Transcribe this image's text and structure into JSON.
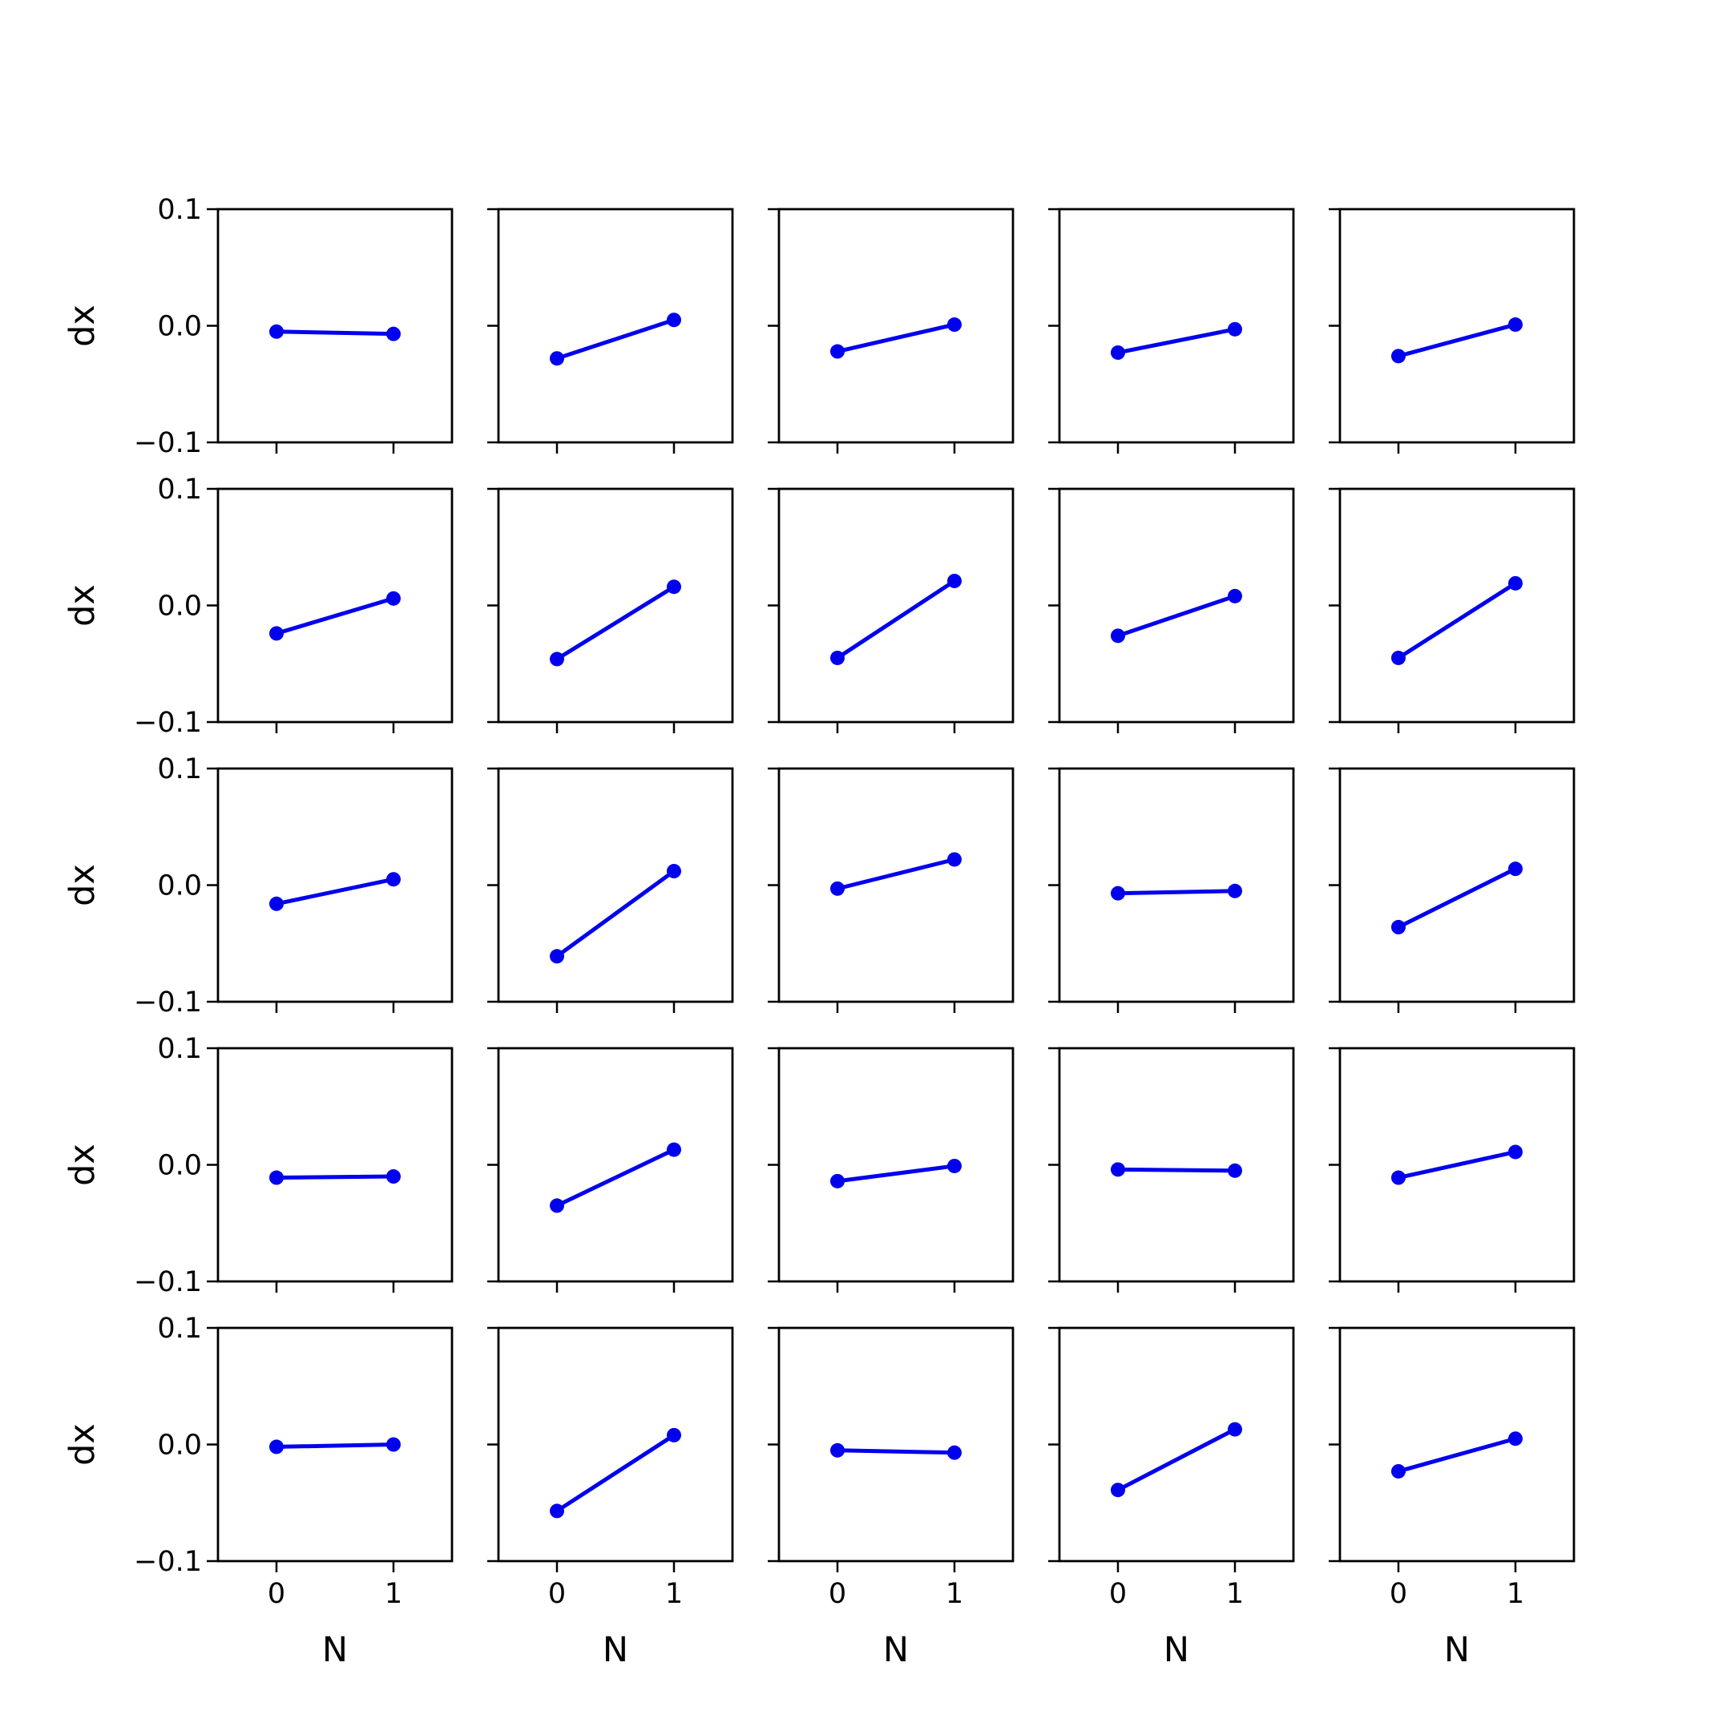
{
  "chart_data": {
    "type": "line",
    "layout": "grid of 5 rows x 5 columns, shared axes",
    "xlabel": "N",
    "ylabel": "dx",
    "x": [
      0,
      1
    ],
    "xticks": [
      0,
      1
    ],
    "xtick_labels": [
      "0",
      "1"
    ],
    "xlim": [
      -0.5,
      1.5
    ],
    "ylim": [
      -0.1,
      0.1
    ],
    "yticks": [
      -0.1,
      0.0,
      0.1
    ],
    "ytick_labels": [
      "−0.1",
      "0.0",
      "0.1"
    ],
    "grid": false,
    "legend": "none",
    "line_color": "#0000ee",
    "marker": "circle",
    "panels": [
      {
        "row": 1,
        "col": 1,
        "values": [
          -0.005,
          -0.007
        ]
      },
      {
        "row": 1,
        "col": 2,
        "values": [
          -0.028,
          0.005
        ]
      },
      {
        "row": 1,
        "col": 3,
        "values": [
          -0.022,
          0.001
        ]
      },
      {
        "row": 1,
        "col": 4,
        "values": [
          -0.023,
          -0.003
        ]
      },
      {
        "row": 1,
        "col": 5,
        "values": [
          -0.026,
          0.001
        ]
      },
      {
        "row": 2,
        "col": 1,
        "values": [
          -0.024,
          0.006
        ]
      },
      {
        "row": 2,
        "col": 2,
        "values": [
          -0.046,
          0.016
        ]
      },
      {
        "row": 2,
        "col": 3,
        "values": [
          -0.045,
          0.021
        ]
      },
      {
        "row": 2,
        "col": 4,
        "values": [
          -0.026,
          0.008
        ]
      },
      {
        "row": 2,
        "col": 5,
        "values": [
          -0.045,
          0.019
        ]
      },
      {
        "row": 3,
        "col": 1,
        "values": [
          -0.016,
          0.005
        ]
      },
      {
        "row": 3,
        "col": 2,
        "values": [
          -0.061,
          0.012
        ]
      },
      {
        "row": 3,
        "col": 3,
        "values": [
          -0.003,
          0.022
        ]
      },
      {
        "row": 3,
        "col": 4,
        "values": [
          -0.007,
          -0.005
        ]
      },
      {
        "row": 3,
        "col": 5,
        "values": [
          -0.036,
          0.014
        ]
      },
      {
        "row": 4,
        "col": 1,
        "values": [
          -0.011,
          -0.01
        ]
      },
      {
        "row": 4,
        "col": 2,
        "values": [
          -0.035,
          0.013
        ]
      },
      {
        "row": 4,
        "col": 3,
        "values": [
          -0.014,
          -0.001
        ]
      },
      {
        "row": 4,
        "col": 4,
        "values": [
          -0.004,
          -0.005
        ]
      },
      {
        "row": 4,
        "col": 5,
        "values": [
          -0.011,
          0.011
        ]
      },
      {
        "row": 5,
        "col": 1,
        "values": [
          -0.002,
          0.0
        ]
      },
      {
        "row": 5,
        "col": 2,
        "values": [
          -0.057,
          0.008
        ]
      },
      {
        "row": 5,
        "col": 3,
        "values": [
          -0.005,
          -0.007
        ]
      },
      {
        "row": 5,
        "col": 4,
        "values": [
          -0.039,
          0.013
        ]
      },
      {
        "row": 5,
        "col": 5,
        "values": [
          -0.023,
          0.005
        ]
      }
    ]
  }
}
